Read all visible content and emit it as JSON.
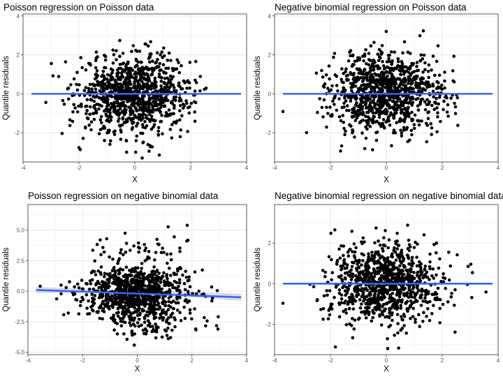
{
  "chart_data": [
    {
      "type": "scatter",
      "title": "Poisson regression on Poisson data",
      "xlabel": "X",
      "ylabel": "Quantile residuals",
      "xlim": [
        -4.0,
        4.0
      ],
      "ylim": [
        -3.5,
        4.1
      ],
      "x_ticks": [
        -4,
        -2,
        0,
        2,
        4
      ],
      "y_ticks": [
        -2,
        0,
        2,
        4
      ],
      "x_tick_labels": [
        "-4",
        "-2",
        "0",
        "2",
        "4"
      ],
      "y_tick_labels": [
        "-2",
        "0",
        "2",
        "4"
      ],
      "grid": true,
      "n_points": 1000,
      "x_range": [
        -3.7,
        3.8
      ],
      "y_spread_sd": 1.0,
      "y_min": -3.3,
      "y_max": 3.7,
      "fit_line": {
        "x": [
          -3.7,
          3.8
        ],
        "y": [
          0.0,
          0.0
        ]
      },
      "conf_band": null,
      "point_color": "#000000",
      "line_color": "#3366ff"
    },
    {
      "type": "scatter",
      "title": "Negative binomial regression on Poisson data",
      "xlabel": "X",
      "ylabel": "Quantile residuals",
      "xlim": [
        -4.0,
        4.0
      ],
      "ylim": [
        -3.5,
        4.1
      ],
      "x_ticks": [
        -4,
        -2,
        0,
        2,
        4
      ],
      "y_ticks": [
        -2,
        0,
        2,
        4
      ],
      "x_tick_labels": [
        "-4",
        "-2",
        "0",
        "2",
        "4"
      ],
      "y_tick_labels": [
        "-2",
        "0",
        "2",
        "4"
      ],
      "grid": true,
      "n_points": 1000,
      "x_range": [
        -3.7,
        3.8
      ],
      "y_spread_sd": 1.0,
      "y_min": -3.1,
      "y_max": 3.7,
      "fit_line": {
        "x": [
          -3.7,
          3.8
        ],
        "y": [
          0.0,
          0.0
        ]
      },
      "conf_band": null,
      "point_color": "#000000",
      "line_color": "#3366ff"
    },
    {
      "type": "scatter",
      "title": "Poisson regression on negative binomial data",
      "xlabel": "X",
      "ylabel": "Quantile residuals",
      "xlim": [
        -4.0,
        4.0
      ],
      "ylim": [
        -5.2,
        7.1
      ],
      "x_ticks": [
        -4,
        -2,
        0,
        2,
        4
      ],
      "y_ticks": [
        -5,
        -2.5,
        0,
        2.5,
        5
      ],
      "x_tick_labels": [
        "-4",
        "-2",
        "0",
        "2",
        "4"
      ],
      "y_tick_labels": [
        "-5.0",
        "-2.5",
        "0.0",
        "2.5",
        "5.0"
      ],
      "grid": true,
      "n_points": 1000,
      "x_range": [
        -3.7,
        3.8
      ],
      "y_spread_sd": 1.3,
      "y_min": -4.9,
      "y_max": 6.9,
      "fit_line": {
        "x": [
          -3.7,
          3.8
        ],
        "y": [
          0.1,
          -0.5
        ]
      },
      "conf_band": {
        "x": [
          -3.7,
          0,
          3.8
        ],
        "lower": [
          -0.15,
          -0.12,
          -0.8
        ],
        "upper": [
          0.35,
          0.08,
          -0.2
        ]
      },
      "point_color": "#000000",
      "line_color": "#3366ff",
      "band_color": "#d0d0d0"
    },
    {
      "type": "scatter",
      "title": "Negative binomial regression on negative binomial data",
      "xlabel": "X",
      "ylabel": "Quantile residuals",
      "xlim": [
        -4.0,
        4.0
      ],
      "ylim": [
        -3.5,
        3.9
      ],
      "x_ticks": [
        -4,
        -2,
        0,
        2,
        4
      ],
      "y_ticks": [
        -2,
        0,
        2
      ],
      "x_tick_labels": [
        "-4",
        "-2",
        "0",
        "2",
        "4"
      ],
      "y_tick_labels": [
        "-2",
        "0",
        "2"
      ],
      "grid": true,
      "n_points": 1000,
      "x_range": [
        -3.7,
        3.8
      ],
      "y_spread_sd": 1.0,
      "y_min": -3.2,
      "y_max": 3.5,
      "fit_line": {
        "x": [
          -3.7,
          3.8
        ],
        "y": [
          0.0,
          0.0
        ]
      },
      "conf_band": null,
      "point_color": "#000000",
      "line_color": "#3366ff"
    }
  ]
}
